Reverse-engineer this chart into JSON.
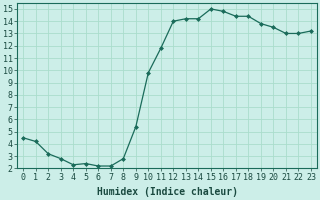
{
  "x": [
    0,
    1,
    2,
    3,
    4,
    5,
    6,
    7,
    8,
    9,
    10,
    11,
    12,
    13,
    14,
    15,
    16,
    17,
    18,
    19,
    20,
    21,
    22,
    23
  ],
  "y": [
    4.5,
    4.2,
    3.2,
    2.8,
    2.3,
    2.4,
    2.2,
    2.2,
    2.8,
    5.4,
    9.8,
    11.8,
    14.0,
    14.2,
    14.2,
    15.0,
    14.8,
    14.4,
    14.4,
    13.8,
    13.5,
    13.0,
    13.0,
    13.2
  ],
  "line_color": "#1a6b5a",
  "marker": "D",
  "marker_size": 2.0,
  "bg_color": "#cceee8",
  "grid_color": "#aaddcc",
  "xlabel": "Humidex (Indice chaleur)",
  "xlim": [
    -0.5,
    23.5
  ],
  "ylim": [
    2,
    15.5
  ],
  "yticks": [
    2,
    3,
    4,
    5,
    6,
    7,
    8,
    9,
    10,
    11,
    12,
    13,
    14,
    15
  ],
  "xticks": [
    0,
    1,
    2,
    3,
    4,
    5,
    6,
    7,
    8,
    9,
    10,
    11,
    12,
    13,
    14,
    15,
    16,
    17,
    18,
    19,
    20,
    21,
    22,
    23
  ],
  "xlabel_fontsize": 7,
  "tick_fontsize": 6,
  "label_color": "#1a4a40",
  "spine_color": "#1a6b5a",
  "linewidth": 0.9
}
